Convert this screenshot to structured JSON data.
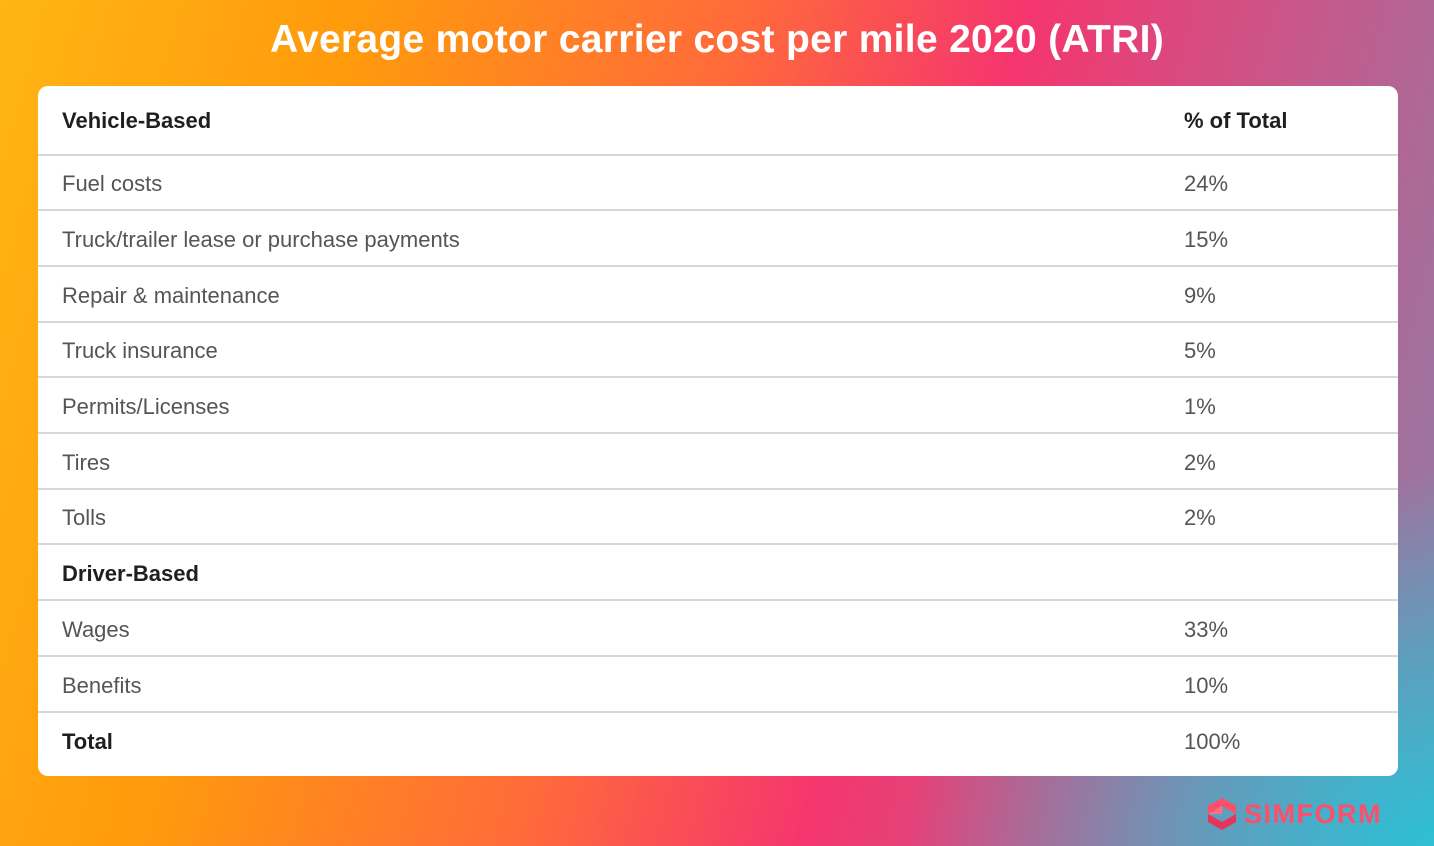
{
  "title": "Average motor carrier cost per mile 2020 (ATRI)",
  "table": {
    "header": {
      "label": "Vehicle-Based",
      "value": "% of Total"
    },
    "rows": [
      {
        "label": "Fuel costs",
        "value": "24%"
      },
      {
        "label": "Truck/trailer lease or purchase payments",
        "value": "15%"
      },
      {
        "label": "Repair & maintenance",
        "value": "9%"
      },
      {
        "label": "Truck insurance",
        "value": "5%"
      },
      {
        "label": "Permits/Licenses",
        "value": "1%"
      },
      {
        "label": "Tires",
        "value": "2%"
      },
      {
        "label": "Tolls",
        "value": "2%"
      },
      {
        "label": "Driver-Based",
        "value": ""
      },
      {
        "label": "Wages",
        "value": "33%"
      },
      {
        "label": "Benefits",
        "value": "10%"
      },
      {
        "label": "Total",
        "value": "100%"
      }
    ]
  },
  "brand": {
    "name": "SIMFORM",
    "icon": "simform-logo-icon",
    "color": "#ff4e6a"
  },
  "colors": {
    "gradient_start": "#ffb514",
    "gradient_mid": "#f5356e",
    "gradient_end": "#28c3d7",
    "card_background": "#ffffff"
  }
}
